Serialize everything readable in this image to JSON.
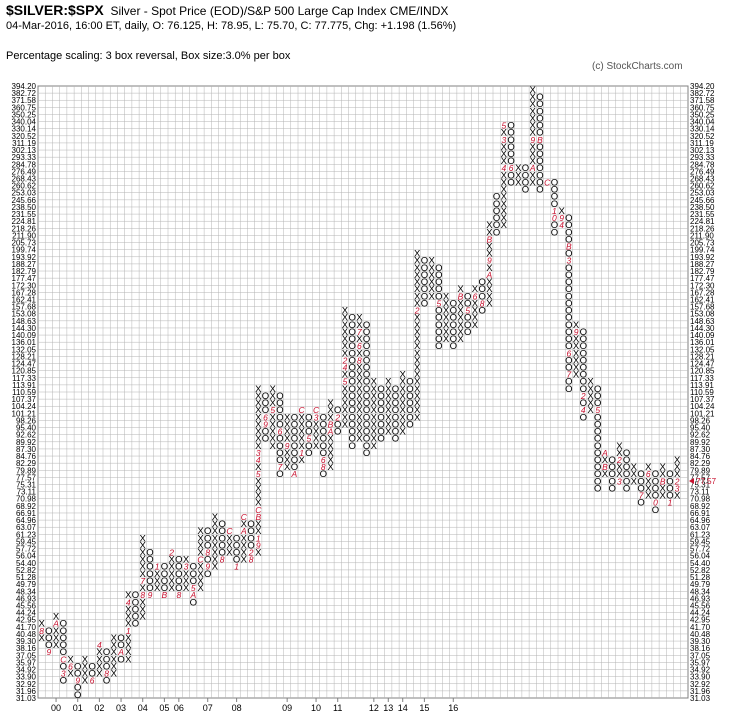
{
  "header": {
    "symbol": "$SILVER:$SPX",
    "description": "Silver - Spot Price (EOD)/S&P 500 Large Cap Index  CME/INDX",
    "ohlc": "04-Mar-2016, 16:00 ET, daily, O: 76.125, H: 78.95, L: 75.70, C: 77.775, Chg: +1.198 (1.56%)",
    "scaling": "Percentage scaling: 3 box reversal, Box size:3.0% per box",
    "credit": "(c) StockCharts.com"
  },
  "chart_data": {
    "type": "point-and-figure",
    "box_size_percent": 3.0,
    "reversal": 3,
    "y_scale": "log",
    "ylim": [
      31.03,
      394.2
    ],
    "y_ticks": [
      "394.20",
      "382.72",
      "371.58",
      "360.75",
      "350.25",
      "340.04",
      "330.14",
      "320.52",
      "311.19",
      "302.13",
      "293.33",
      "284.78",
      "276.49",
      "268.43",
      "260.62",
      "253.03",
      "245.66",
      "238.50",
      "231.55",
      "224.81",
      "218.26",
      "211.90",
      "205.73",
      "199.74",
      "193.92",
      "188.27",
      "182.79",
      "177.47",
      "172.30",
      "167.28",
      "162.41",
      "157.68",
      "153.08",
      "148.63",
      "144.30",
      "140.09",
      "136.01",
      "132.05",
      "128.21",
      "124.47",
      "120.85",
      "117.33",
      "113.91",
      "110.59",
      "107.37",
      "104.24",
      "101.21",
      "98.26",
      "95.40",
      "92.62",
      "89.92",
      "87.30",
      "84.76",
      "82.29",
      "79.89",
      "77.57",
      "75.31",
      "73.11",
      "70.98",
      "68.92",
      "66.91",
      "64.96",
      "63.07",
      "61.23",
      "59.45",
      "57.72",
      "56.04",
      "54.40",
      "52.82",
      "51.28",
      "49.79",
      "48.34",
      "46.93",
      "45.56",
      "44.24",
      "42.95",
      "41.70",
      "40.48",
      "39.30",
      "38.16",
      "37.05",
      "35.97",
      "34.92",
      "33.90",
      "32.92",
      "31.96",
      "31.03"
    ],
    "x_labels": [
      {
        "label": "00",
        "col": 2
      },
      {
        "label": "01",
        "col": 5
      },
      {
        "label": "02",
        "col": 8
      },
      {
        "label": "03",
        "col": 11
      },
      {
        "label": "04",
        "col": 14
      },
      {
        "label": "05",
        "col": 17
      },
      {
        "label": "06",
        "col": 19
      },
      {
        "label": "07",
        "col": 23
      },
      {
        "label": "08",
        "col": 27
      },
      {
        "label": "09",
        "col": 34
      },
      {
        "label": "10",
        "col": 38
      },
      {
        "label": "11",
        "col": 41
      },
      {
        "label": "12",
        "col": 46
      },
      {
        "label": "13",
        "col": 48
      },
      {
        "label": "14",
        "col": 50
      },
      {
        "label": "15",
        "col": 53
      },
      {
        "label": "16",
        "col": 57
      }
    ],
    "last_price": "77.57",
    "columns": [
      {
        "t": "X",
        "lo": 40.48,
        "hi": 42.95,
        "m": [
          [
            41.7,
            "8"
          ]
        ]
      },
      {
        "t": "O",
        "lo": 38.16,
        "hi": 41.7,
        "m": [
          [
            38.16,
            "9"
          ]
        ]
      },
      {
        "t": "X",
        "lo": 39.3,
        "hi": 44.24,
        "m": [
          [
            42.95,
            "A"
          ]
        ]
      },
      {
        "t": "O",
        "lo": 33.9,
        "hi": 42.95,
        "m": [
          [
            36.01,
            "C"
          ],
          [
            34.92,
            "3"
          ]
        ]
      },
      {
        "t": "X",
        "lo": 34.92,
        "hi": 37.05,
        "m": [
          [
            35.97,
            "6"
          ]
        ]
      },
      {
        "t": "O",
        "lo": 31.96,
        "hi": 35.97,
        "m": [
          [
            32.92,
            "8"
          ],
          [
            32.92,
            "9"
          ]
        ]
      },
      {
        "t": "X",
        "lo": 32.92,
        "hi": 36.01,
        "m": []
      },
      {
        "t": "O",
        "lo": 33.9,
        "hi": 35.97,
        "m": [
          [
            33.9,
            "6"
          ]
        ]
      },
      {
        "t": "X",
        "lo": 34.92,
        "hi": 39.3,
        "m": [
          [
            39.3,
            "4"
          ]
        ]
      },
      {
        "t": "O",
        "lo": 33.9,
        "hi": 38.16,
        "m": [
          [
            34.92,
            "8"
          ]
        ]
      },
      {
        "t": "X",
        "lo": 34.92,
        "hi": 40.48,
        "m": []
      },
      {
        "t": "O",
        "lo": 36.01,
        "hi": 40.48,
        "m": [
          [
            38.16,
            "A"
          ]
        ]
      },
      {
        "t": "X",
        "lo": 37.05,
        "hi": 48.34,
        "m": [
          [
            46.93,
            "4"
          ],
          [
            41.7,
            "1"
          ]
        ]
      },
      {
        "t": "O",
        "lo": 42.95,
        "hi": 48.34,
        "m": []
      },
      {
        "t": "X",
        "lo": 44.24,
        "hi": 61.23,
        "m": [
          [
            51.28,
            "7"
          ],
          [
            47.27,
            "8"
          ]
        ]
      },
      {
        "t": "O",
        "lo": 48.34,
        "hi": 57.72,
        "m": [
          [
            48.34,
            "9"
          ]
        ]
      },
      {
        "t": "X",
        "lo": 49.79,
        "hi": 54.4,
        "m": [
          [
            54.4,
            "1"
          ]
        ]
      },
      {
        "t": "O",
        "lo": 48.34,
        "hi": 54.4,
        "m": [
          [
            48.34,
            "B"
          ]
        ]
      },
      {
        "t": "X",
        "lo": 49.79,
        "hi": 57.72,
        "m": [
          [
            57.72,
            "2"
          ]
        ]
      },
      {
        "t": "O",
        "lo": 47.27,
        "hi": 56.04,
        "m": [
          [
            47.27,
            "8"
          ]
        ]
      },
      {
        "t": "X",
        "lo": 49.79,
        "hi": 56.04,
        "m": [
          [
            54.4,
            "3"
          ]
        ]
      },
      {
        "t": "O",
        "lo": 46.93,
        "hi": 54.4,
        "m": [
          [
            49.79,
            "5"
          ],
          [
            48.34,
            "A"
          ]
        ]
      },
      {
        "t": "X",
        "lo": 49.79,
        "hi": 63.07,
        "m": [
          [
            64.96,
            "4"
          ],
          [
            56.04,
            "C"
          ]
        ]
      },
      {
        "t": "O",
        "lo": 52.82,
        "hi": 63.07,
        "m": [
          [
            57.72,
            "8"
          ],
          [
            54.4,
            "9"
          ]
        ]
      },
      {
        "t": "X",
        "lo": 54.4,
        "hi": 66.91,
        "m": []
      },
      {
        "t": "O",
        "lo": 56.04,
        "hi": 64.96,
        "m": [
          [
            56.04,
            "8"
          ]
        ]
      },
      {
        "t": "X",
        "lo": 57.72,
        "hi": 63.07,
        "m": [
          [
            63.07,
            "C"
          ]
        ]
      },
      {
        "t": "O",
        "lo": 54.4,
        "hi": 61.23,
        "m": [
          [
            54.4,
            "1"
          ]
        ]
      },
      {
        "t": "X",
        "lo": 56.04,
        "hi": 66.91,
        "m": [
          [
            66.91,
            "C"
          ],
          [
            63.07,
            "A"
          ]
        ]
      },
      {
        "t": "O",
        "lo": 56.04,
        "hi": 64.96,
        "m": [
          [
            57.72,
            "2"
          ],
          [
            56.04,
            "8"
          ]
        ]
      },
      {
        "t": "X",
        "lo": 57.72,
        "hi": 113.91,
        "m": [
          [
            87.3,
            "3"
          ],
          [
            84.76,
            "4"
          ],
          [
            79.89,
            "5"
          ],
          [
            68.92,
            "C"
          ],
          [
            66.91,
            "B"
          ],
          [
            61.23,
            "1"
          ],
          [
            59.45,
            "9"
          ]
        ]
      },
      {
        "t": "O",
        "lo": 92.62,
        "hi": 110.59,
        "m": [
          [
            101.21,
            "6"
          ],
          [
            98.26,
            "9"
          ]
        ]
      },
      {
        "t": "X",
        "lo": 89.92,
        "hi": 113.91,
        "m": [
          [
            104.24,
            "5"
          ]
        ]
      },
      {
        "t": "O",
        "lo": 79.89,
        "hi": 110.59,
        "m": [
          [
            95.4,
            "6"
          ],
          [
            82.29,
            "7"
          ]
        ]
      },
      {
        "t": "X",
        "lo": 82.29,
        "hi": 101.21,
        "m": [
          [
            89.92,
            "9"
          ]
        ]
      },
      {
        "t": "O",
        "lo": 79.89,
        "hi": 101.21,
        "m": [
          [
            79.89,
            "A"
          ]
        ]
      },
      {
        "t": "X",
        "lo": 84.76,
        "hi": 104.24,
        "m": [
          [
            104.24,
            "C"
          ],
          [
            87.3,
            "1"
          ]
        ]
      },
      {
        "t": "O",
        "lo": 87.3,
        "hi": 101.21,
        "m": [
          [
            92.62,
            "5"
          ]
        ]
      },
      {
        "t": "X",
        "lo": 89.92,
        "hi": 104.24,
        "m": [
          [
            104.24,
            "C"
          ],
          [
            101.21,
            "3"
          ]
        ]
      },
      {
        "t": "O",
        "lo": 79.89,
        "hi": 101.21,
        "m": [
          [
            84.76,
            "6"
          ],
          [
            82.29,
            "8"
          ]
        ]
      },
      {
        "t": "X",
        "lo": 82.29,
        "hi": 107.37,
        "m": [
          [
            98.26,
            "B"
          ],
          [
            95.4,
            "A"
          ]
        ]
      },
      {
        "t": "O",
        "lo": 95.4,
        "hi": 104.24,
        "m": [
          [
            101.21,
            "2"
          ]
        ]
      },
      {
        "t": "X",
        "lo": 98.26,
        "hi": 157.68,
        "m": [
          [
            126.82,
            "2"
          ],
          [
            124.47,
            "4"
          ],
          [
            117.33,
            "5"
          ]
        ]
      },
      {
        "t": "O",
        "lo": 89.92,
        "hi": 153.08,
        "m": []
      },
      {
        "t": "X",
        "lo": 92.62,
        "hi": 153.08,
        "m": [
          [
            144.3,
            "7"
          ],
          [
            136.01,
            "6"
          ],
          [
            128.21,
            "8"
          ]
        ]
      },
      {
        "t": "O",
        "lo": 87.3,
        "hi": 148.63,
        "m": []
      },
      {
        "t": "X",
        "lo": 89.92,
        "hi": 117.33,
        "m": []
      },
      {
        "t": "O",
        "lo": 92.62,
        "hi": 113.91,
        "m": []
      },
      {
        "t": "X",
        "lo": 95.4,
        "hi": 117.33,
        "m": []
      },
      {
        "t": "O",
        "lo": 92.62,
        "hi": 113.91,
        "m": []
      },
      {
        "t": "X",
        "lo": 95.4,
        "hi": 120.85,
        "m": []
      },
      {
        "t": "O",
        "lo": 98.26,
        "hi": 117.33,
        "m": []
      },
      {
        "t": "X",
        "lo": 101.21,
        "hi": 199.74,
        "m": [
          [
            157.68,
            "2"
          ]
        ]
      },
      {
        "t": "O",
        "lo": 162.41,
        "hi": 193.92,
        "m": []
      },
      {
        "t": "X",
        "lo": 167.28,
        "hi": 193.92,
        "m": []
      },
      {
        "t": "O",
        "lo": 136.01,
        "hi": 188.27,
        "m": [
          [
            162.41,
            "5"
          ]
        ]
      },
      {
        "t": "X",
        "lo": 140.09,
        "hi": 167.28,
        "m": []
      },
      {
        "t": "O",
        "lo": 136.01,
        "hi": 162.41,
        "m": []
      },
      {
        "t": "X",
        "lo": 140.09,
        "hi": 172.3,
        "m": [
          [
            167.28,
            "B"
          ]
        ]
      },
      {
        "t": "O",
        "lo": 144.3,
        "hi": 167.28,
        "m": [
          [
            157.68,
            "5"
          ]
        ]
      },
      {
        "t": "X",
        "lo": 148.63,
        "hi": 172.3,
        "m": [
          [
            167.28,
            "6"
          ]
        ]
      },
      {
        "t": "O",
        "lo": 157.68,
        "hi": 177.47,
        "m": [
          [
            162.41,
            "8"
          ]
        ]
      },
      {
        "t": "X",
        "lo": 162.41,
        "hi": 224.81,
        "m": [
          [
            238.5,
            "C"
          ],
          [
            211.9,
            "B"
          ],
          [
            193.92,
            "9"
          ],
          [
            182.79,
            "A"
          ]
        ]
      },
      {
        "t": "O",
        "lo": 218.26,
        "hi": 245.66,
        "m": []
      },
      {
        "t": "X",
        "lo": 224.81,
        "hi": 340.04,
        "m": [
          [
            340.04,
            "5"
          ],
          [
            311.19,
            "3"
          ],
          [
            284.78,
            "4"
          ]
        ]
      },
      {
        "t": "O",
        "lo": 260.62,
        "hi": 330.14,
        "m": [
          [
            276.49,
            "6"
          ],
          [
            253.03,
            "7"
          ]
        ]
      },
      {
        "t": "X",
        "lo": 260.62,
        "hi": 284.78,
        "m": []
      },
      {
        "t": "O",
        "lo": 253.03,
        "hi": 276.49,
        "m": []
      },
      {
        "t": "X",
        "lo": 260.62,
        "hi": 382.72,
        "m": [
          [
            311.19,
            "9"
          ],
          [
            276.49,
            "A"
          ]
        ]
      },
      {
        "t": "O",
        "lo": 253.03,
        "hi": 371.58,
        "m": [
          [
            320.52,
            "B"
          ]
        ]
      },
      {
        "t": "X",
        "lo": 260.62,
        "hi": 268.43,
        "m": [
          [
            268.43,
            "C"
          ]
        ]
      },
      {
        "t": "O",
        "lo": 218.26,
        "hi": 260.62,
        "m": [
          [
            238.5,
            "1"
          ],
          [
            231.55,
            "0"
          ]
        ]
      },
      {
        "t": "X",
        "lo": 224.81,
        "hi": 238.5,
        "m": [
          [
            231.55,
            "9"
          ],
          [
            224.81,
            "4"
          ]
        ]
      },
      {
        "t": "O",
        "lo": 113.91,
        "hi": 231.55,
        "m": [
          [
            205.73,
            "B"
          ],
          [
            193.92,
            "3"
          ],
          [
            132.05,
            "6"
          ],
          [
            120.85,
            "7"
          ]
        ]
      },
      {
        "t": "X",
        "lo": 120.85,
        "hi": 148.63,
        "m": [
          [
            144.3,
            "9"
          ]
        ]
      },
      {
        "t": "O",
        "lo": 101.21,
        "hi": 144.3,
        "m": [
          [
            110.59,
            "2"
          ],
          [
            104.24,
            "4"
          ]
        ]
      },
      {
        "t": "X",
        "lo": 104.24,
        "hi": 117.33,
        "m": []
      },
      {
        "t": "O",
        "lo": 75.31,
        "hi": 113.91,
        "m": [
          [
            104.24,
            "5"
          ]
        ]
      },
      {
        "t": "X",
        "lo": 79.89,
        "hi": 87.3,
        "m": [
          [
            87.3,
            "A"
          ],
          [
            82.29,
            "B"
          ]
        ]
      },
      {
        "t": "O",
        "lo": 75.31,
        "hi": 84.76,
        "m": []
      },
      {
        "t": "X",
        "lo": 77.57,
        "hi": 89.92,
        "m": [
          [
            84.76,
            "2"
          ],
          [
            77.57,
            "3"
          ]
        ]
      },
      {
        "t": "O",
        "lo": 75.31,
        "hi": 87.3,
        "m": []
      },
      {
        "t": "X",
        "lo": 77.57,
        "hi": 82.29,
        "m": []
      },
      {
        "t": "O",
        "lo": 70.98,
        "hi": 79.89,
        "m": [
          [
            73.11,
            "7"
          ]
        ]
      },
      {
        "t": "X",
        "lo": 73.11,
        "hi": 82.29,
        "m": [
          [
            79.89,
            "6"
          ]
        ]
      },
      {
        "t": "O",
        "lo": 68.92,
        "hi": 79.89,
        "m": [
          [
            70.98,
            "8"
          ],
          [
            70.98,
            "0"
          ]
        ]
      },
      {
        "t": "X",
        "lo": 73.11,
        "hi": 82.29,
        "m": [
          [
            77.57,
            "B"
          ]
        ]
      },
      {
        "t": "O",
        "lo": 70.98,
        "hi": 79.89,
        "m": [
          [
            70.98,
            "1"
          ]
        ]
      },
      {
        "t": "X",
        "lo": 73.11,
        "hi": 84.76,
        "m": [
          [
            77.57,
            "2"
          ],
          [
            75.31,
            "3"
          ]
        ]
      }
    ]
  },
  "colors": {
    "x": "#000000",
    "o": "#000000",
    "marker": "#c8102e",
    "grid": "#b4b4b4",
    "text": "#000000",
    "last": "#c8102e"
  }
}
